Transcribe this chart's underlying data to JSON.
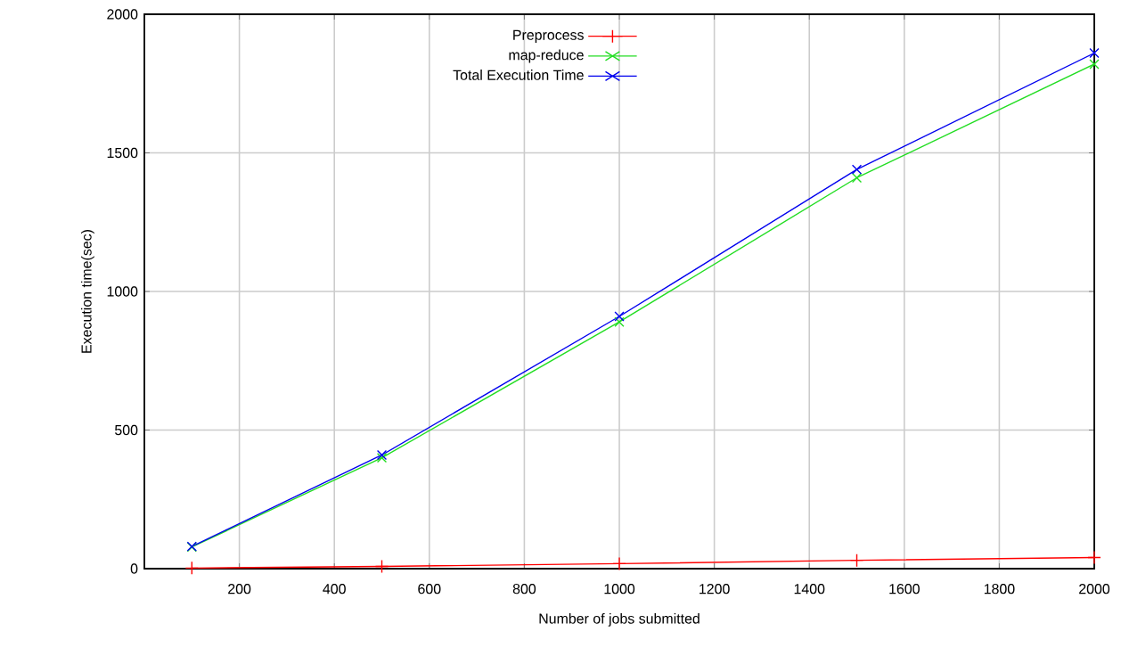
{
  "chart_data": {
    "type": "line",
    "xlabel": "Number of jobs submitted",
    "ylabel": "Execution time(sec)",
    "x": [
      100,
      500,
      1000,
      1500,
      2000
    ],
    "series": [
      {
        "name": "Preprocess",
        "color": "#ff0000",
        "marker": "plus",
        "values": [
          2,
          8,
          18,
          30,
          40
        ]
      },
      {
        "name": "map-reduce",
        "color": "#22dd22",
        "marker": "cross",
        "values": [
          78,
          400,
          890,
          1410,
          1820
        ]
      },
      {
        "name": "Total Execution Time",
        "color": "#0000ee",
        "marker": "cross",
        "values": [
          80,
          410,
          910,
          1440,
          1860
        ]
      }
    ],
    "xlim": [
      0,
      2000
    ],
    "xticks": [
      200,
      400,
      600,
      800,
      1000,
      1200,
      1400,
      1600,
      1800,
      2000
    ],
    "ylim": [
      0,
      2000
    ],
    "yticks": [
      0,
      500,
      1000,
      1500,
      2000
    ],
    "grid": true,
    "legend": "top",
    "line_style": "solid"
  }
}
